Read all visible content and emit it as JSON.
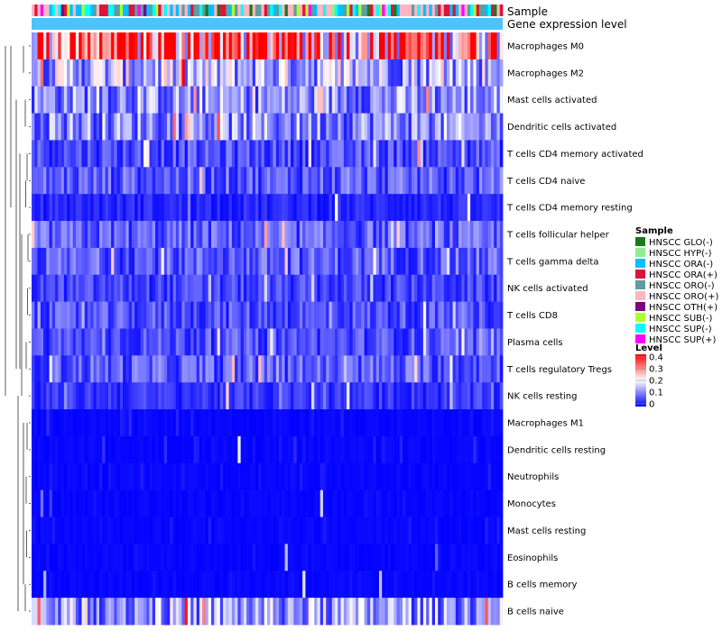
{
  "chart_data": {
    "type": "heatmap",
    "annotation_tracks": [
      "Sample",
      "Gene expression level"
    ],
    "rows": [
      "Macrophages M0",
      "Macrophages M2",
      "Mast cells activated",
      "Dendritic cells activated",
      "T cells CD4 memory activated",
      "T cells CD4 naive",
      "T cells CD4 memory resting",
      "T cells follicular helper",
      "T cells gamma delta",
      "NK cells activated",
      "T cells CD8",
      "Plasma cells",
      "T cells regulatory  Tregs",
      "NK cells resting",
      "Macrophages M1",
      "Dendritic cells resting",
      "Neutrophils",
      "Monocytes",
      "Mast cells resting",
      "Eosinophils",
      "B cells memory",
      "B cells naive"
    ],
    "row_mean_levels": [
      0.32,
      0.14,
      0.11,
      0.11,
      0.06,
      0.07,
      0.03,
      0.07,
      0.07,
      0.05,
      0.06,
      0.06,
      0.07,
      0.04,
      0.02,
      0.02,
      0.015,
      0.01,
      0.015,
      0.01,
      0.01,
      0.12
    ],
    "n_samples": 160,
    "legend_sample": {
      "title": "Sample",
      "entries": [
        {
          "label": "HNSCC GLO(-)",
          "color": "#1a7a1a"
        },
        {
          "label": "HNSCC HYP(-)",
          "color": "#90ee90"
        },
        {
          "label": "HNSCC ORA(-)",
          "color": "#00bfff"
        },
        {
          "label": "HNSCC ORA(+)",
          "color": "#dc143c"
        },
        {
          "label": "HNSCC ORO(-)",
          "color": "#5f9ea0"
        },
        {
          "label": "HNSCC ORO(+)",
          "color": "#ffb6c1"
        },
        {
          "label": "HNSCC OTH(+)",
          "color": "#800080"
        },
        {
          "label": "HNSCC SUB(-)",
          "color": "#adff2f"
        },
        {
          "label": "HNSCC SUP(-)",
          "color": "#00ffff"
        },
        {
          "label": "HNSCC SUP(+)",
          "color": "#ff00ff"
        }
      ]
    },
    "legend_level": {
      "title": "Level",
      "range": [
        0,
        0.4
      ],
      "ticks": [
        "0.4",
        "0.3",
        "0.2",
        "0.1",
        "0"
      ],
      "colors": {
        "low": "#0000ff",
        "mid": "#ffffff",
        "high": "#ff0000"
      }
    }
  }
}
